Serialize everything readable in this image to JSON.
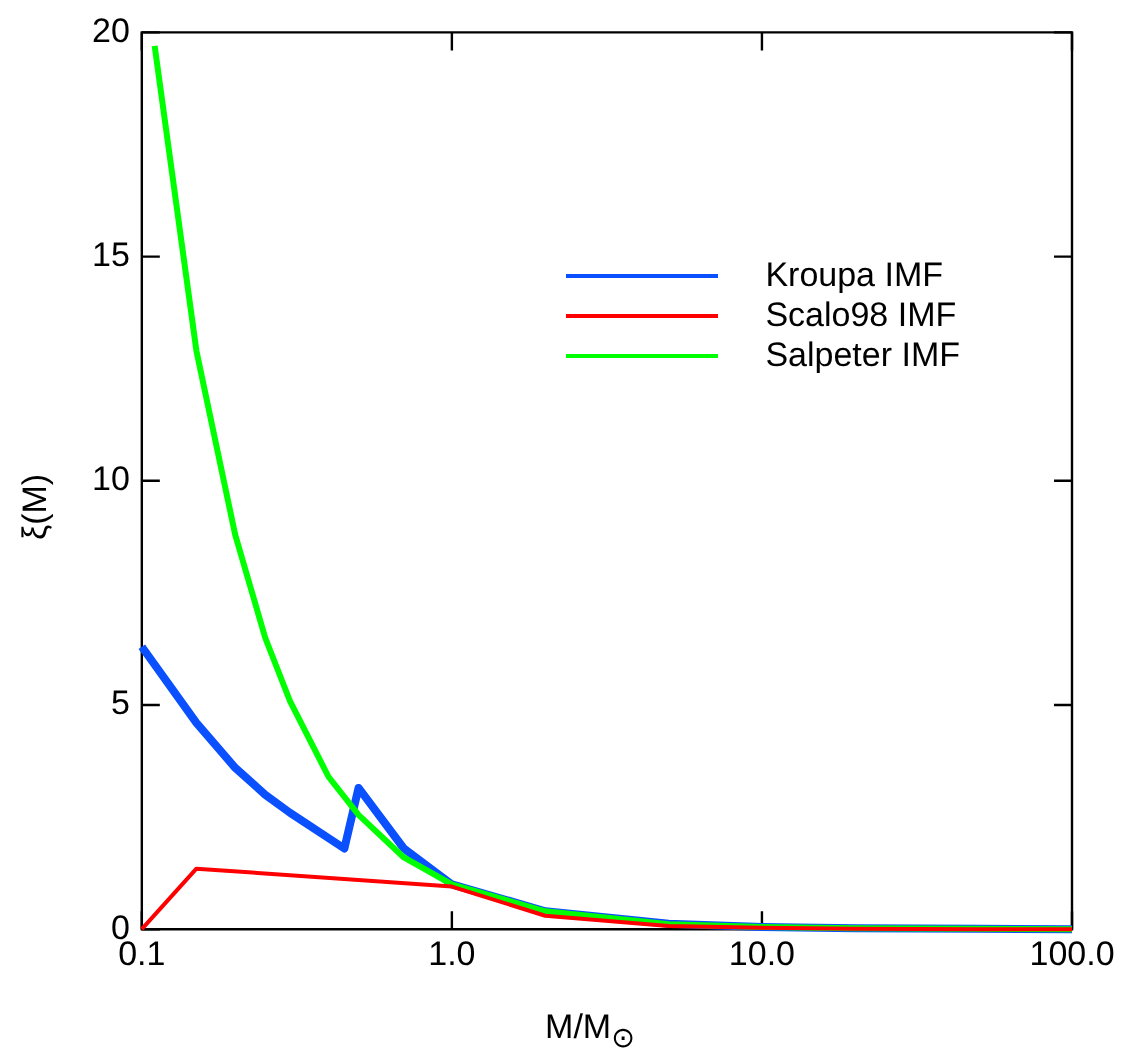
{
  "chart_data": {
    "type": "line",
    "xlabel": "M/M$_{⊙}$",
    "ylabel": "ξ(M)",
    "log": "x",
    "xlim": [
      0.1,
      100
    ],
    "xticks": [
      {
        "value": 0.1,
        "label": "0.1"
      },
      {
        "value": 1,
        "label": "1.0"
      },
      {
        "value": 10,
        "label": "10.0"
      },
      {
        "value": 100,
        "label": "100.0"
      }
    ],
    "ylim": [
      0,
      20
    ],
    "yticks": [
      0,
      5,
      10,
      15,
      20
    ],
    "grid": false,
    "legend": "top right",
    "marker": "none",
    "line_style": "solid",
    "series": [
      {
        "name": "Kroupa IMF",
        "color": "#0a50ff",
        "x": [
          0.1,
          0.15,
          0.2,
          0.25,
          0.3,
          0.45,
          0.5,
          0.7,
          1,
          2,
          5,
          10,
          20,
          50,
          100
        ],
        "values": [
          6.3,
          4.6,
          3.6,
          3.0,
          2.6,
          1.8,
          3.15,
          1.8,
          1.0,
          0.4,
          0.12,
          0.05,
          0.02,
          0.01,
          0.0
        ]
      },
      {
        "name": "Scalo98 IMF",
        "color": "#ff0000",
        "x": [
          0.1,
          0.15,
          1,
          2,
          5,
          10,
          20,
          50,
          100
        ],
        "values": [
          0,
          1.35,
          0.95,
          0.3,
          0.07,
          0.03,
          0.01,
          0.0,
          0.0
        ]
      },
      {
        "name": "Salpeter IMF",
        "color": "#00ff00",
        "x": [
          0.11,
          0.15,
          0.2,
          0.25,
          0.3,
          0.4,
          0.5,
          0.7,
          1,
          2,
          5,
          10,
          20,
          50,
          100
        ],
        "values": [
          19.7,
          12.9,
          8.8,
          6.5,
          5.1,
          3.4,
          2.55,
          1.6,
          1.0,
          0.4,
          0.11,
          0.05,
          0.02,
          0.01,
          0.0
        ]
      }
    ]
  }
}
